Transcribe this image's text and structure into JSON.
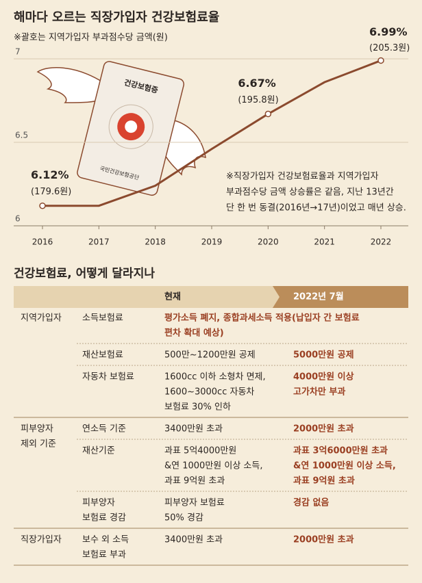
{
  "chart_data": {
    "type": "line",
    "title": "해마다 오르는 직장가입자 건강보험료율",
    "subtitle": "※괄호는 지역가입자 부과점수당 금액(원)",
    "categories": [
      "2016",
      "2017",
      "2018",
      "2019",
      "2020",
      "2021",
      "2022"
    ],
    "series": [
      {
        "color": "#8b4a2e",
        "values": [
          6.12,
          6.12,
          6.24,
          6.46,
          6.67,
          6.86,
          6.99
        ],
        "value_labels": [
          "6.12%",
          null,
          null,
          null,
          "6.67%",
          null,
          "6.99%"
        ],
        "point_labels": [
          "(179.6원)",
          null,
          null,
          null,
          "(195.8원)",
          null,
          "(205.3원)"
        ]
      }
    ],
    "ylim": [
      6,
      7
    ],
    "yticks": [
      6,
      6.5,
      7
    ],
    "grid": true,
    "note": [
      "※직장가입자 건강보험료율과 지역가입자",
      "부과점수당 금액 상승률은 같음, 지난 13년간",
      "단 한 번 동결(2016년→17년)이었고 매년 상승."
    ]
  },
  "illustration": {
    "card_title": "건강보험증",
    "card_issuer": "국민건강보험공단"
  },
  "table": {
    "title": "건강보험료, 어떻게 달라지나",
    "columns": [
      "현재",
      "2022년 7월"
    ],
    "groups": [
      {
        "name": [
          "지역가입자"
        ],
        "rows": [
          {
            "item": [
              "소득보험료"
            ],
            "future": [
              "평가소득 폐지, 종합과세소득 적용(납입자 간 보험료",
              "편차 확대 예상)"
            ]
          },
          {
            "item": [
              "재산보험료"
            ],
            "current": [
              "500만~1200만원 공제"
            ],
            "future": [
              "5000만원 공제"
            ]
          },
          {
            "item": [
              "자동차 보험료"
            ],
            "current": [
              "1600cc 이하 소형차 면제,",
              "1600~3000cc 자동차",
              "보험료 30% 인하"
            ],
            "future": [
              "4000만원 이상",
              "고가차만 부과"
            ]
          }
        ]
      },
      {
        "name": [
          "피부양자",
          "제외 기준"
        ],
        "rows": [
          {
            "item": [
              "연소득 기준"
            ],
            "current": [
              "3400만원 초과"
            ],
            "future": [
              "2000만원 초과"
            ]
          },
          {
            "item": [
              "재산기준"
            ],
            "current": [
              "과표 5억4000만원",
              "&연 1000만원 이상 소득,",
              "과표 9억원 초과"
            ],
            "future": [
              "과표 3억6000만원 초과",
              "&연 1000만원 이상 소득,",
              "과표 9억원 초과"
            ]
          },
          {
            "item": [
              "피부양자",
              "보험료 경감"
            ],
            "current": [
              "피부양자 보험료",
              "50% 경감"
            ],
            "future": [
              "경감 없음"
            ]
          }
        ]
      },
      {
        "name": [
          "직장가입자"
        ],
        "rows": [
          {
            "item": [
              "보수 외 소득",
              "보험료 부과"
            ],
            "current": [
              "3400만원 초과"
            ],
            "future": [
              "2000만원 초과"
            ]
          }
        ]
      }
    ]
  }
}
